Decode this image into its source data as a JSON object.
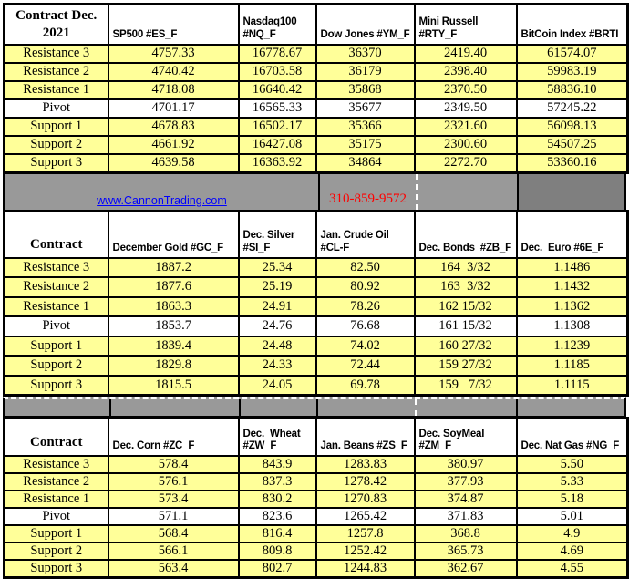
{
  "colors": {
    "row_yellow": "#ffff99",
    "pivot_row_white": "#ffffff",
    "band_gray": "#999999",
    "band_dark_gray": "#7f7f7f",
    "link_blue": "#0000ff",
    "phone_red": "#ff0000",
    "border_black": "#000000"
  },
  "banner": {
    "website": "www.CannonTrading.com",
    "phone": "310-859-9572"
  },
  "sections": [
    {
      "title": "Contract Dec. 2021",
      "columns": [
        "SP500 #ES_F",
        "Nasdaq100 #NQ_F",
        "Dow Jones #YM_F",
        "Mini Russell #RTY_F",
        "BitCoin Index #BRTI"
      ],
      "rows": [
        {
          "label": "Resistance 3",
          "values": [
            "4757.33",
            "16778.67",
            "36370",
            "2419.40",
            "61574.07"
          ]
        },
        {
          "label": "Resistance 2",
          "values": [
            "4740.42",
            "16703.58",
            "36179",
            "2398.40",
            "59983.19"
          ]
        },
        {
          "label": "Resistance 1",
          "values": [
            "4718.08",
            "16640.42",
            "35868",
            "2370.50",
            "58836.10"
          ]
        },
        {
          "label": "Pivot",
          "values": [
            "4701.17",
            "16565.33",
            "35677",
            "2349.50",
            "57245.22"
          ]
        },
        {
          "label": "Support 1",
          "values": [
            "4678.83",
            "16502.17",
            "35366",
            "2321.60",
            "56098.13"
          ]
        },
        {
          "label": "Support 2",
          "values": [
            "4661.92",
            "16427.08",
            "35175",
            "2300.60",
            "54507.25"
          ]
        },
        {
          "label": "Support 3",
          "values": [
            "4639.58",
            "16363.92",
            "34864",
            "2272.70",
            "53360.16"
          ]
        }
      ]
    },
    {
      "title": "Contract",
      "columns": [
        "December Gold #GC_F",
        "Dec. Silver #SI_F",
        "Jan. Crude Oil #CL-F",
        "Dec. Bonds  #ZB_F",
        "Dec.  Euro #6E_F"
      ],
      "rows": [
        {
          "label": "Resistance 3",
          "values": [
            "1887.2",
            "25.34",
            "82.50",
            "164  3/32",
            "1.1486"
          ]
        },
        {
          "label": "Resistance 2",
          "values": [
            "1877.6",
            "25.19",
            "80.92",
            "163  3/32",
            "1.1432"
          ]
        },
        {
          "label": "Resistance 1",
          "values": [
            "1863.3",
            "24.91",
            "78.26",
            "162 15/32",
            "1.1362"
          ]
        },
        {
          "label": "Pivot",
          "values": [
            "1853.7",
            "24.76",
            "76.68",
            "161 15/32",
            "1.1308"
          ]
        },
        {
          "label": "Support 1",
          "values": [
            "1839.4",
            "24.48",
            "74.02",
            "160 27/32",
            "1.1239"
          ]
        },
        {
          "label": "Support 2",
          "values": [
            "1829.8",
            "24.33",
            "72.44",
            "159 27/32",
            "1.1185"
          ]
        },
        {
          "label": "Support 3",
          "values": [
            "1815.5",
            "24.05",
            "69.78",
            "159   7/32",
            "1.1115"
          ]
        }
      ]
    },
    {
      "title": "Contract",
      "columns": [
        "Dec. Corn #ZC_F",
        "Dec.  Wheat #ZW_F",
        "Jan. Beans #ZS_F",
        "Dec. SoyMeal #ZM_F",
        "Dec. Nat Gas #NG_F"
      ],
      "rows": [
        {
          "label": "Resistance 3",
          "values": [
            "578.4",
            "843.9",
            "1283.83",
            "380.97",
            "5.50"
          ]
        },
        {
          "label": "Resistance 2",
          "values": [
            "576.1",
            "837.3",
            "1278.42",
            "377.93",
            "5.33"
          ]
        },
        {
          "label": "Resistance 1",
          "values": [
            "573.4",
            "830.2",
            "1270.83",
            "374.87",
            "5.18"
          ]
        },
        {
          "label": "Pivot",
          "values": [
            "571.1",
            "823.6",
            "1265.42",
            "371.83",
            "5.01"
          ]
        },
        {
          "label": "Support 1",
          "values": [
            "568.4",
            "816.4",
            "1257.8",
            "368.8",
            "4.9"
          ]
        },
        {
          "label": "Support 2",
          "values": [
            "566.1",
            "809.8",
            "1252.42",
            "365.73",
            "4.69"
          ]
        },
        {
          "label": "Support 3",
          "values": [
            "563.4",
            "802.7",
            "1244.83",
            "362.67",
            "4.55"
          ]
        }
      ]
    }
  ]
}
